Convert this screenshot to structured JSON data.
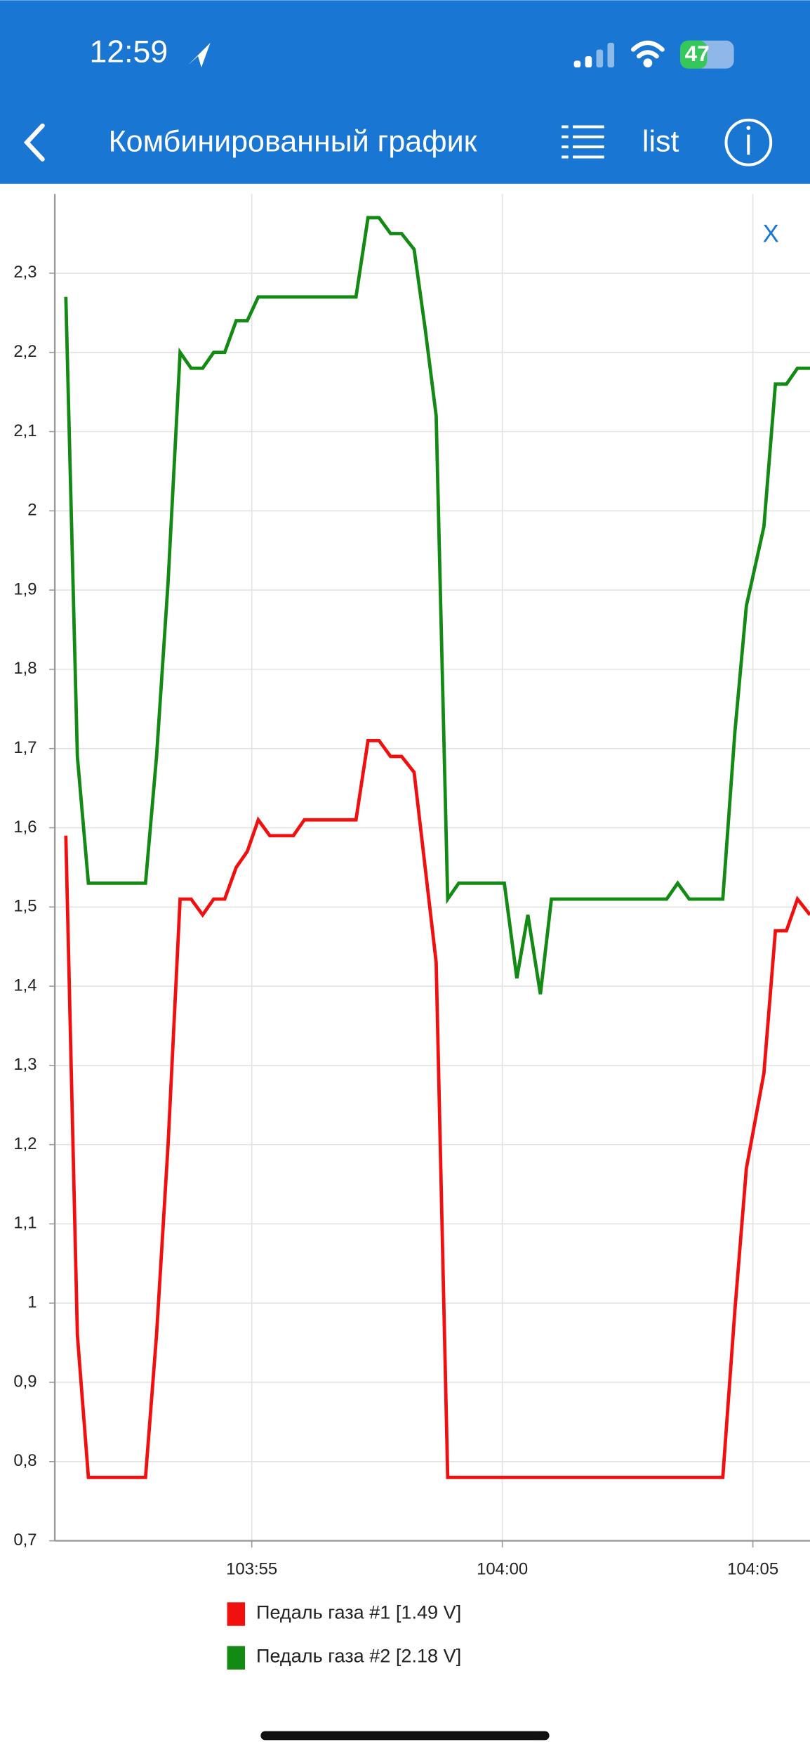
{
  "status": {
    "time": "12:59",
    "battery": "47"
  },
  "header": {
    "title": "Комбинированный график",
    "list": "list"
  },
  "close": "X",
  "chart_data": {
    "type": "line",
    "xlim": [
      6231.07,
      6246.14
    ],
    "xticks": [
      {
        "value": 6235,
        "label": "103:55"
      },
      {
        "value": 6240,
        "label": "104:00"
      },
      {
        "value": 6245,
        "label": "104:05"
      }
    ],
    "ylim": [
      0.7,
      2.4
    ],
    "yticks": [
      {
        "value": 0.7,
        "label": "0,7"
      },
      {
        "value": 0.8,
        "label": "0,8"
      },
      {
        "value": 0.9,
        "label": "0,9"
      },
      1,
      {
        "value": 1.1,
        "label": "1,1"
      },
      {
        "value": 1.2,
        "label": "1,2"
      },
      {
        "value": 1.3,
        "label": "1,3"
      },
      {
        "value": 1.4,
        "label": "1,4"
      },
      {
        "value": 1.5,
        "label": "1,5"
      },
      {
        "value": 1.6,
        "label": "1,6"
      },
      {
        "value": 1.7,
        "label": "1,7"
      },
      {
        "value": 1.8,
        "label": "1,8"
      },
      {
        "value": 1.9,
        "label": "1,9"
      },
      2,
      {
        "value": 2.1,
        "label": "2,1"
      },
      {
        "value": 2.2,
        "label": "2,2"
      },
      {
        "value": 2.3,
        "label": "2,3"
      }
    ],
    "grid": true,
    "series": [
      {
        "name": "Педаль газа #1 [1.49 V]",
        "color": "#f01010",
        "x": [
          6231.29,
          6231.52,
          6231.74,
          6232.88,
          6233.1,
          6233.33,
          6233.57,
          6233.79,
          6234.02,
          6234.24,
          6234.46,
          6234.69,
          6234.91,
          6235.13,
          6235.36,
          6235.83,
          6236.05,
          6237.08,
          6237.32,
          6237.54,
          6237.77,
          6237.99,
          6238.24,
          6238.46,
          6238.68,
          6238.91,
          6244.4,
          6244.64,
          6244.87,
          6245.22,
          6245.45,
          6245.67,
          6245.89,
          6246.14
        ],
        "values": [
          1.59,
          0.96,
          0.78,
          0.78,
          0.96,
          1.2,
          1.51,
          1.51,
          1.49,
          1.51,
          1.51,
          1.55,
          1.57,
          1.61,
          1.59,
          1.59,
          1.61,
          1.61,
          1.71,
          1.71,
          1.69,
          1.69,
          1.67,
          1.55,
          1.43,
          0.78,
          0.78,
          0.99,
          1.17,
          1.29,
          1.47,
          1.47,
          1.51,
          1.49
        ]
      },
      {
        "name": "Педаль газа #2 [2.18 V]",
        "color": "#138a13",
        "x": [
          6231.29,
          6231.52,
          6231.74,
          6232.88,
          6233.1,
          6233.33,
          6233.57,
          6233.79,
          6234.02,
          6234.24,
          6234.46,
          6234.69,
          6234.91,
          6235.13,
          6237.08,
          6237.32,
          6237.54,
          6237.77,
          6237.99,
          6238.24,
          6238.46,
          6238.68,
          6238.91,
          6239.13,
          6240.04,
          6240.29,
          6240.51,
          6240.76,
          6240.98,
          6243.28,
          6243.5,
          6243.73,
          6244.4,
          6244.64,
          6244.87,
          6245.22,
          6245.45,
          6245.67,
          6245.89,
          6246.14
        ],
        "values": [
          2.27,
          1.69,
          1.53,
          1.53,
          1.69,
          1.91,
          2.2,
          2.18,
          2.18,
          2.2,
          2.2,
          2.24,
          2.24,
          2.27,
          2.27,
          2.37,
          2.37,
          2.35,
          2.35,
          2.33,
          2.23,
          2.12,
          1.51,
          1.53,
          1.53,
          1.41,
          1.49,
          1.39,
          1.51,
          1.51,
          1.53,
          1.51,
          1.51,
          1.72,
          1.88,
          1.98,
          2.16,
          2.16,
          2.18,
          2.18
        ]
      }
    ]
  }
}
